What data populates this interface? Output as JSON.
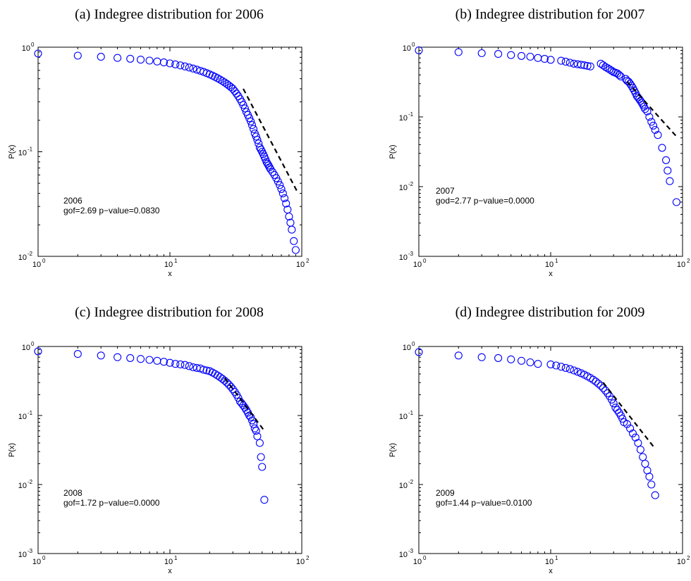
{
  "figure": {
    "colors": {
      "points": "#0000ff",
      "fit_line": "#000000",
      "axes": "#000000",
      "background": "#ffffff"
    },
    "marker": "open-circle"
  },
  "chart_data": [
    {
      "type": "scatter",
      "caption": "(a)  Indegree distribution for 2006",
      "xlabel": "x",
      "ylabel": "P(x)",
      "xscale": "log",
      "yscale": "log",
      "xlim": [
        1,
        100
      ],
      "ylim": [
        0.01,
        1
      ],
      "x_ticks": [
        {
          "base": "10",
          "exp": "0"
        },
        {
          "base": "10",
          "exp": "1"
        },
        {
          "base": "10",
          "exp": "2"
        }
      ],
      "y_ticks": [
        {
          "base": "10",
          "exp": "-2"
        },
        {
          "base": "10",
          "exp": "-1"
        },
        {
          "base": "10",
          "exp": "0"
        }
      ],
      "annotation": [
        "2006",
        "gof=2.69 p−value=0.0830"
      ],
      "series": [
        {
          "style": "markers",
          "x": [
            1,
            2,
            3,
            4,
            5,
            6,
            7,
            8,
            9,
            10,
            11,
            12,
            13,
            14,
            15,
            16,
            17,
            18,
            19,
            20,
            21,
            22,
            23,
            24,
            25,
            26,
            27,
            28,
            29,
            30,
            31,
            32,
            33,
            34,
            35,
            36,
            37,
            38,
            39,
            40,
            41,
            42,
            43,
            44,
            45,
            46,
            47,
            48,
            49,
            50,
            51,
            52,
            53,
            54,
            55,
            56,
            57,
            58,
            60,
            62,
            64,
            66,
            68,
            70,
            72,
            74,
            76,
            78,
            80,
            82,
            84,
            87,
            90
          ],
          "y": [
            0.87,
            0.83,
            0.81,
            0.79,
            0.775,
            0.76,
            0.745,
            0.73,
            0.715,
            0.7,
            0.685,
            0.67,
            0.655,
            0.64,
            0.625,
            0.61,
            0.595,
            0.58,
            0.565,
            0.55,
            0.535,
            0.52,
            0.505,
            0.49,
            0.475,
            0.46,
            0.445,
            0.43,
            0.415,
            0.4,
            0.38,
            0.36,
            0.34,
            0.32,
            0.3,
            0.28,
            0.26,
            0.24,
            0.225,
            0.21,
            0.195,
            0.18,
            0.165,
            0.15,
            0.14,
            0.13,
            0.12,
            0.11,
            0.105,
            0.1,
            0.095,
            0.09,
            0.085,
            0.08,
            0.077,
            0.074,
            0.071,
            0.068,
            0.064,
            0.06,
            0.056,
            0.052,
            0.048,
            0.044,
            0.04,
            0.036,
            0.032,
            0.028,
            0.024,
            0.021,
            0.018,
            0.014,
            0.0115
          ]
        },
        {
          "style": "dashed-line",
          "x": [
            36,
            92
          ],
          "y": [
            0.4,
            0.042
          ]
        }
      ]
    },
    {
      "type": "scatter",
      "caption": "(b)  Indegree distribution for 2007",
      "xlabel": "x",
      "ylabel": "P(x)",
      "xscale": "log",
      "yscale": "log",
      "xlim": [
        1,
        100
      ],
      "ylim": [
        0.001,
        1
      ],
      "x_ticks": [
        {
          "base": "10",
          "exp": "0"
        },
        {
          "base": "10",
          "exp": "1"
        },
        {
          "base": "10",
          "exp": "2"
        }
      ],
      "y_ticks": [
        {
          "base": "10",
          "exp": "-3"
        },
        {
          "base": "10",
          "exp": "-2"
        },
        {
          "base": "10",
          "exp": "-1"
        },
        {
          "base": "10",
          "exp": "0"
        }
      ],
      "annotation": [
        "2007",
        "god=2.77 p−value=0.0000"
      ],
      "series": [
        {
          "style": "markers",
          "x": [
            1,
            2,
            3,
            4,
            5,
            6,
            7,
            8,
            9,
            10,
            12,
            13,
            14,
            15,
            16,
            17,
            18,
            19,
            20,
            24,
            25,
            26,
            27,
            28,
            29,
            30,
            31,
            32,
            33,
            34,
            37,
            38,
            39,
            40,
            41,
            42,
            43,
            44,
            45,
            46,
            47,
            48,
            49,
            50,
            51,
            52,
            54,
            56,
            58,
            60,
            62,
            65,
            70,
            75,
            77,
            80,
            90
          ],
          "y": [
            0.9,
            0.85,
            0.82,
            0.8,
            0.77,
            0.75,
            0.73,
            0.7,
            0.68,
            0.66,
            0.64,
            0.62,
            0.6,
            0.58,
            0.57,
            0.56,
            0.55,
            0.54,
            0.53,
            0.58,
            0.55,
            0.52,
            0.5,
            0.48,
            0.46,
            0.44,
            0.43,
            0.42,
            0.4,
            0.38,
            0.35,
            0.33,
            0.32,
            0.3,
            0.28,
            0.26,
            0.24,
            0.22,
            0.2,
            0.19,
            0.18,
            0.17,
            0.16,
            0.15,
            0.14,
            0.13,
            0.12,
            0.1,
            0.085,
            0.075,
            0.065,
            0.055,
            0.036,
            0.024,
            0.017,
            0.012,
            0.006
          ]
        },
        {
          "style": "dashed-line",
          "x": [
            38,
            92
          ],
          "y": [
            0.32,
            0.05
          ]
        }
      ]
    },
    {
      "type": "scatter",
      "caption": "(c)  Indegree distribution for 2008",
      "xlabel": "x",
      "ylabel": "P(x)",
      "xscale": "log",
      "yscale": "log",
      "xlim": [
        1,
        100
      ],
      "ylim": [
        0.001,
        1
      ],
      "x_ticks": [
        {
          "base": "10",
          "exp": "0"
        },
        {
          "base": "10",
          "exp": "1"
        },
        {
          "base": "10",
          "exp": "2"
        }
      ],
      "y_ticks": [
        {
          "base": "10",
          "exp": "-3"
        },
        {
          "base": "10",
          "exp": "-2"
        },
        {
          "base": "10",
          "exp": "-1"
        },
        {
          "base": "10",
          "exp": "0"
        }
      ],
      "annotation": [
        "2008",
        "gof=1.72 p−value=0.0000"
      ],
      "series": [
        {
          "style": "markers",
          "x": [
            1,
            2,
            3,
            4,
            5,
            6,
            7,
            8,
            9,
            10,
            11,
            12,
            13,
            14,
            15,
            16,
            17,
            18,
            19,
            20,
            21,
            22,
            23,
            24,
            25,
            26,
            27,
            28,
            29,
            30,
            31,
            32,
            33,
            34,
            35,
            36,
            37,
            38,
            39,
            40,
            41,
            42,
            43,
            44,
            45,
            46,
            48,
            49,
            50,
            52
          ],
          "y": [
            0.85,
            0.78,
            0.74,
            0.7,
            0.68,
            0.66,
            0.64,
            0.62,
            0.6,
            0.58,
            0.56,
            0.55,
            0.54,
            0.52,
            0.5,
            0.49,
            0.48,
            0.46,
            0.45,
            0.44,
            0.42,
            0.4,
            0.38,
            0.36,
            0.34,
            0.32,
            0.3,
            0.28,
            0.26,
            0.24,
            0.22,
            0.2,
            0.18,
            0.16,
            0.15,
            0.14,
            0.13,
            0.12,
            0.11,
            0.1,
            0.095,
            0.085,
            0.075,
            0.065,
            0.06,
            0.05,
            0.04,
            0.025,
            0.018,
            0.006
          ]
        },
        {
          "style": "dashed-line",
          "x": [
            26,
            52
          ],
          "y": [
            0.35,
            0.06
          ]
        }
      ]
    },
    {
      "type": "scatter",
      "caption": "(d)  Indegree distribution for 2009",
      "xlabel": "x",
      "ylabel": "P(x)",
      "xscale": "log",
      "yscale": "log",
      "xlim": [
        1,
        100
      ],
      "ylim": [
        0.001,
        1
      ],
      "x_ticks": [
        {
          "base": "10",
          "exp": "0"
        },
        {
          "base": "10",
          "exp": "1"
        },
        {
          "base": "10",
          "exp": "2"
        }
      ],
      "y_ticks": [
        {
          "base": "10",
          "exp": "-3"
        },
        {
          "base": "10",
          "exp": "-2"
        },
        {
          "base": "10",
          "exp": "-1"
        },
        {
          "base": "10",
          "exp": "0"
        }
      ],
      "annotation": [
        "2009",
        "gof=1.44 p−value=0.0100"
      ],
      "series": [
        {
          "style": "markers",
          "x": [
            1,
            2,
            3,
            4,
            5,
            6,
            7,
            8,
            10,
            11,
            12,
            13,
            14,
            15,
            16,
            17,
            18,
            19,
            20,
            21,
            22,
            23,
            24,
            25,
            26,
            27,
            28,
            29,
            30,
            31,
            32,
            33,
            34,
            35,
            36,
            38,
            40,
            42,
            44,
            46,
            48,
            50,
            52,
            54,
            56,
            58,
            62
          ],
          "y": [
            0.83,
            0.74,
            0.7,
            0.68,
            0.65,
            0.62,
            0.59,
            0.56,
            0.55,
            0.53,
            0.51,
            0.49,
            0.47,
            0.45,
            0.43,
            0.41,
            0.39,
            0.37,
            0.35,
            0.33,
            0.31,
            0.29,
            0.27,
            0.25,
            0.23,
            0.21,
            0.19,
            0.17,
            0.15,
            0.13,
            0.12,
            0.11,
            0.1,
            0.09,
            0.08,
            0.075,
            0.065,
            0.055,
            0.048,
            0.04,
            0.032,
            0.025,
            0.02,
            0.016,
            0.013,
            0.01,
            0.007
          ]
        },
        {
          "style": "dashed-line",
          "x": [
            25,
            62
          ],
          "y": [
            0.3,
            0.033
          ]
        }
      ]
    }
  ]
}
